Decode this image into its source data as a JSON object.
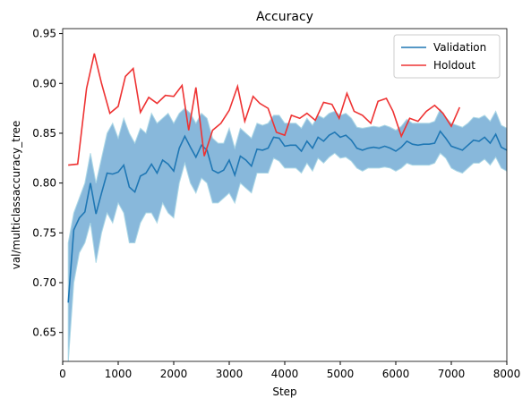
{
  "chart_data": {
    "type": "line",
    "title": "Accuracy",
    "xlabel": "Step",
    "ylabel": "val/multiclassaccuracy_tree",
    "xlim": [
      0,
      8000
    ],
    "ylim": [
      0.621,
      0.955
    ],
    "xticks": [
      0,
      1000,
      2000,
      3000,
      4000,
      5000,
      6000,
      7000,
      8000
    ],
    "yticks": [
      0.65,
      {
        "value": 0.7,
        "label": "0.70"
      },
      0.75,
      {
        "value": 0.8,
        "label": "0.80"
      },
      0.85,
      {
        "value": 0.9,
        "label": "0.90"
      },
      0.95
    ],
    "legend": "upper right",
    "grid": false,
    "series": [
      {
        "name": "Validation",
        "color": "#1f77b4",
        "band_color": "#88b8db",
        "x": [
          100,
          200,
          300,
          400,
          500,
          600,
          700,
          800,
          900,
          1000,
          1100,
          1200,
          1300,
          1400,
          1500,
          1600,
          1700,
          1800,
          1900,
          2000,
          2100,
          2200,
          2300,
          2400,
          2500,
          2600,
          2700,
          2800,
          2900,
          3000,
          3100,
          3200,
          3300,
          3400,
          3500,
          3600,
          3700,
          3800,
          3900,
          4000,
          4100,
          4200,
          4300,
          4400,
          4500,
          4600,
          4700,
          4800,
          4900,
          5000,
          5100,
          5200,
          5300,
          5400,
          5500,
          5600,
          5700,
          5800,
          5900,
          6000,
          6100,
          6200,
          6300,
          6400,
          6500,
          6600,
          6700,
          6800,
          6900,
          7000,
          7100,
          7200,
          7300,
          7400,
          7500,
          7600,
          7700,
          7800,
          7900,
          8000
        ],
        "values": [
          0.68,
          0.753,
          0.765,
          0.771,
          0.8,
          0.769,
          0.79,
          0.81,
          0.809,
          0.811,
          0.818,
          0.796,
          0.791,
          0.807,
          0.81,
          0.819,
          0.81,
          0.823,
          0.819,
          0.812,
          0.835,
          0.847,
          0.836,
          0.826,
          0.838,
          0.833,
          0.813,
          0.81,
          0.813,
          0.823,
          0.808,
          0.827,
          0.823,
          0.817,
          0.834,
          0.833,
          0.835,
          0.846,
          0.845,
          0.837,
          0.838,
          0.838,
          0.832,
          0.842,
          0.835,
          0.846,
          0.842,
          0.848,
          0.851,
          0.846,
          0.848,
          0.843,
          0.835,
          0.833,
          0.835,
          0.836,
          0.835,
          0.837,
          0.835,
          0.832,
          0.836,
          0.842,
          0.839,
          0.838,
          0.839,
          0.839,
          0.84,
          0.852,
          0.845,
          0.837,
          0.835,
          0.833,
          0.838,
          0.843,
          0.842,
          0.846,
          0.84,
          0.849,
          0.836,
          0.833
        ],
        "lower": [
          0.62,
          0.7,
          0.73,
          0.74,
          0.76,
          0.72,
          0.75,
          0.77,
          0.76,
          0.78,
          0.77,
          0.74,
          0.74,
          0.76,
          0.77,
          0.77,
          0.76,
          0.78,
          0.77,
          0.765,
          0.8,
          0.82,
          0.8,
          0.79,
          0.805,
          0.8,
          0.78,
          0.78,
          0.785,
          0.79,
          0.78,
          0.8,
          0.795,
          0.79,
          0.81,
          0.81,
          0.81,
          0.825,
          0.822,
          0.815,
          0.815,
          0.815,
          0.81,
          0.82,
          0.812,
          0.825,
          0.82,
          0.826,
          0.83,
          0.825,
          0.826,
          0.822,
          0.815,
          0.812,
          0.815,
          0.815,
          0.815,
          0.816,
          0.815,
          0.812,
          0.815,
          0.82,
          0.818,
          0.818,
          0.818,
          0.818,
          0.82,
          0.83,
          0.825,
          0.815,
          0.812,
          0.81,
          0.815,
          0.82,
          0.82,
          0.824,
          0.818,
          0.826,
          0.815,
          0.812
        ],
        "upper": [
          0.74,
          0.77,
          0.785,
          0.8,
          0.83,
          0.8,
          0.825,
          0.85,
          0.86,
          0.845,
          0.865,
          0.85,
          0.84,
          0.855,
          0.85,
          0.87,
          0.86,
          0.865,
          0.87,
          0.86,
          0.87,
          0.875,
          0.87,
          0.86,
          0.87,
          0.865,
          0.845,
          0.84,
          0.84,
          0.855,
          0.835,
          0.855,
          0.85,
          0.845,
          0.86,
          0.858,
          0.86,
          0.868,
          0.868,
          0.86,
          0.86,
          0.86,
          0.855,
          0.865,
          0.858,
          0.868,
          0.865,
          0.87,
          0.872,
          0.868,
          0.87,
          0.865,
          0.856,
          0.855,
          0.856,
          0.857,
          0.856,
          0.858,
          0.856,
          0.853,
          0.857,
          0.864,
          0.86,
          0.86,
          0.86,
          0.86,
          0.862,
          0.874,
          0.866,
          0.86,
          0.858,
          0.856,
          0.86,
          0.866,
          0.865,
          0.868,
          0.862,
          0.872,
          0.858,
          0.855
        ]
      },
      {
        "name": "Holdout",
        "color": "#ee3333",
        "x": [
          100,
          270,
          430,
          570,
          700,
          850,
          1000,
          1130,
          1270,
          1400,
          1550,
          1700,
          1850,
          2000,
          2150,
          2270,
          2400,
          2550,
          2700,
          2850,
          3000,
          3150,
          3280,
          3430,
          3550,
          3700,
          3850,
          4000,
          4120,
          4270,
          4400,
          4550,
          4700,
          4850,
          4980,
          5120,
          5250,
          5400,
          5550,
          5680,
          5830,
          5950,
          6100,
          6250,
          6400,
          6550,
          6700,
          6850,
          7000,
          7150
        ],
        "values": [
          0.818,
          0.819,
          0.895,
          0.93,
          0.9,
          0.87,
          0.877,
          0.907,
          0.915,
          0.871,
          0.886,
          0.88,
          0.888,
          0.887,
          0.898,
          0.853,
          0.896,
          0.827,
          0.853,
          0.86,
          0.873,
          0.897,
          0.862,
          0.887,
          0.88,
          0.875,
          0.851,
          0.848,
          0.868,
          0.865,
          0.87,
          0.863,
          0.881,
          0.879,
          0.865,
          0.89,
          0.872,
          0.868,
          0.86,
          0.882,
          0.885,
          0.872,
          0.847,
          0.865,
          0.862,
          0.872,
          0.878,
          0.87,
          0.857,
          0.876
        ]
      }
    ]
  }
}
